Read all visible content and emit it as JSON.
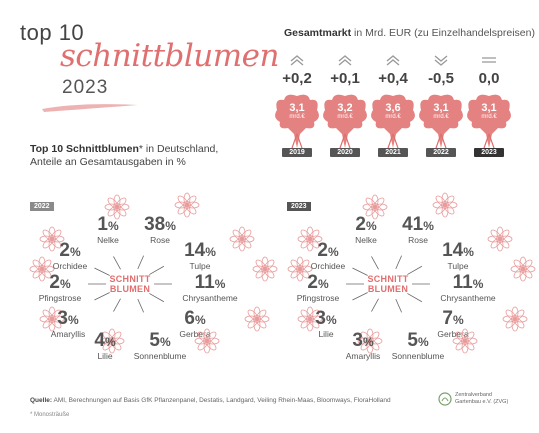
{
  "title": {
    "line1": "top 10",
    "line2": "schnittblumen",
    "year": "2023"
  },
  "subtitle": {
    "bold": "Top 10 Schnittblumen",
    "rest": "* in Deutschland,",
    "line2": "Anteile an Gesamtausgaben in %"
  },
  "gesamtmarkt": {
    "title_bold": "Gesamtmarkt",
    "title_rest": " in Mrd. EUR (zu Einzelhandelspreisen)",
    "unit": "mrd.€",
    "columns": [
      {
        "year": "2019",
        "delta": "+0,2",
        "value": "3,1",
        "trend": "up-double"
      },
      {
        "year": "2020",
        "delta": "+0,1",
        "value": "3,2",
        "trend": "up-double"
      },
      {
        "year": "2021",
        "delta": "+0,4",
        "value": "3,6",
        "trend": "up-double"
      },
      {
        "year": "2022",
        "delta": "-0,5",
        "value": "3,1",
        "trend": "down-double"
      },
      {
        "year": "2023",
        "delta": "0,0",
        "value": "3,1",
        "trend": "flat"
      }
    ]
  },
  "center_label": {
    "line1": "SCHNITT",
    "line2": "BLUMEN"
  },
  "chart_data": [
    {
      "type": "table",
      "title": "2022",
      "unit": "%",
      "categories": [
        "Nelke",
        "Rose",
        "Tulpe",
        "Chrysantheme",
        "Gerbera",
        "Sonnenblume",
        "Lilie",
        "Amaryllis",
        "Pfingstrose",
        "Orchidee"
      ],
      "values": [
        1,
        38,
        14,
        11,
        6,
        5,
        4,
        3,
        2,
        2
      ]
    },
    {
      "type": "table",
      "title": "2023",
      "unit": "%",
      "categories": [
        "Nelke",
        "Rose",
        "Tulpe",
        "Chrysantheme",
        "Gerbera",
        "Sonnenblume",
        "Amaryllis",
        "Lilie",
        "Pfingstrose",
        "Orchidee"
      ],
      "values": [
        2,
        41,
        14,
        11,
        7,
        5,
        3,
        3,
        2,
        2
      ]
    }
  ],
  "footer": {
    "quelle_bold": "Quelle:",
    "quelle_text": " AMI, Berechnungen auf Basis GfK Pflanzenpanel, Destatis, Landgard, Veiling Rhein-Maas, Bloomways, FloraHolland",
    "note": "* Monosträuße",
    "logo_line1": "Zentralverband",
    "logo_line2": "Gartenbau e.V. (ZVG)"
  },
  "colors": {
    "accent": "#e06f6f",
    "flower_line": "#e89a9a",
    "dark": "#555555"
  }
}
